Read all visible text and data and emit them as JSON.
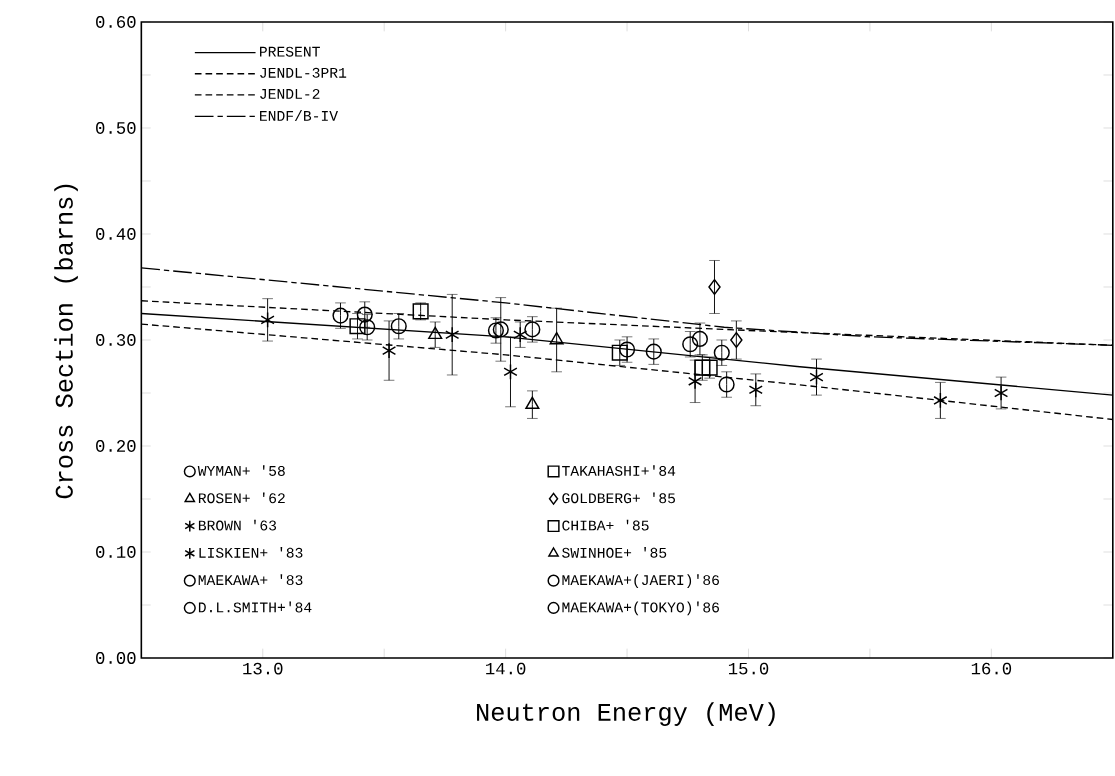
{
  "chart_data": {
    "type": "scatter",
    "xlabel": "Neutron Energy (MeV)",
    "ylabel": "Cross Section (barns)",
    "xlim": [
      12.5,
      16.5
    ],
    "ylim": [
      0,
      0.6
    ],
    "xticks": [
      {
        "value": 12.5,
        "label": null
      },
      {
        "value": 13,
        "label": "13.0"
      },
      {
        "value": 13.5,
        "label": null
      },
      {
        "value": 14,
        "label": "14.0"
      },
      {
        "value": 14.5,
        "label": null
      },
      {
        "value": 15,
        "label": "15.0"
      },
      {
        "value": 15.5,
        "label": null
      },
      {
        "value": 16,
        "label": "16.0"
      }
    ],
    "yticks": [
      {
        "value": 0,
        "label": "0.00"
      },
      {
        "value": 0.05,
        "label": null
      },
      {
        "value": 0.1,
        "label": "0.10"
      },
      {
        "value": 0.15,
        "label": null
      },
      {
        "value": 0.2,
        "label": "0.20"
      },
      {
        "value": 0.25,
        "label": null
      },
      {
        "value": 0.3,
        "label": "0.30"
      },
      {
        "value": 0.35,
        "label": null
      },
      {
        "value": 0.4,
        "label": "0.40"
      },
      {
        "value": 0.45,
        "label": null
      },
      {
        "value": 0.5,
        "label": "0.50"
      },
      {
        "value": 0.55,
        "label": null
      },
      {
        "value": 0.6,
        "label": "0.60"
      }
    ],
    "legend": "top left",
    "series": [
      {
        "name": "PRESENT",
        "type": "line",
        "line_style": "solid",
        "color": "#000000",
        "x": [
          12.5,
          14.0,
          15.2,
          16.5
        ],
        "values": [
          0.325,
          0.303,
          0.275,
          0.248
        ]
      },
      {
        "name": "JENDL-3PR1",
        "type": "line",
        "line_style": "dashed",
        "color": "#000000",
        "x": [
          12.5,
          14.0,
          15.0,
          16.5
        ],
        "values": [
          0.337,
          0.319,
          0.309,
          0.295
        ]
      },
      {
        "name": "JENDL-2",
        "type": "line",
        "line_style": "dashed",
        "color": "#000000",
        "x": [
          12.5,
          14.0,
          15.2,
          16.5
        ],
        "values": [
          0.315,
          0.286,
          0.258,
          0.225
        ]
      },
      {
        "name": "ENDF/B-IV",
        "type": "line",
        "line_style": "dashdot",
        "color": "#000000",
        "x": [
          12.5,
          14.0,
          14.9,
          15.5,
          16.5
        ],
        "values": [
          0.368,
          0.335,
          0.312,
          0.303,
          0.295
        ]
      },
      {
        "name": "WYMAN+ '58",
        "marker": "circle",
        "color": "#000000",
        "x": [
          13.42,
          13.98,
          14.8
        ],
        "values": [
          0.324,
          0.31,
          0.301
        ],
        "errors": [
          0.012,
          0.03,
          0.015
        ]
      },
      {
        "name": "ROSEN+ '62",
        "marker": "triangle",
        "color": "#000000",
        "x": [
          13.71,
          14.21
        ],
        "values": [
          0.305,
          0.3
        ],
        "errors": [
          0.012,
          0.03
        ]
      },
      {
        "name": "BROWN '63",
        "marker": "cross",
        "color": "#000000",
        "x": [
          14.06
        ],
        "values": [
          0.305
        ],
        "errors": [
          0.012
        ]
      },
      {
        "name": "LISKIEN+ '83",
        "marker": "cross",
        "color": "#000000",
        "x": [
          13.02,
          13.52,
          13.78,
          14.02,
          14.78,
          15.03,
          15.28,
          15.79,
          16.04
        ],
        "values": [
          0.319,
          0.29,
          0.305,
          0.27,
          0.261,
          0.253,
          0.265,
          0.243,
          0.25
        ],
        "errors": [
          0.02,
          0.028,
          0.038,
          0.033,
          0.02,
          0.015,
          0.017,
          0.017,
          0.015
        ]
      },
      {
        "name": "MAEKAWA+ '83",
        "marker": "circle",
        "color": "#000000",
        "x": [
          14.11,
          14.5
        ],
        "values": [
          0.31,
          0.291
        ],
        "errors": [
          0.012,
          0.012
        ]
      },
      {
        "name": "D.L.SMITH+'84",
        "marker": "circle",
        "color": "#000000",
        "x": [
          13.43,
          14.76
        ],
        "values": [
          0.312,
          0.296
        ],
        "errors": [
          0.012,
          0.012
        ]
      },
      {
        "name": "TAKAHASHI+'84",
        "marker": "square",
        "color": "#000000",
        "x": [
          13.65,
          14.84
        ],
        "values": [
          0.327,
          0.274
        ],
        "errors": [
          0.008,
          0.01
        ]
      },
      {
        "name": "GOLDBERG+ '85",
        "marker": "diamond",
        "color": "#000000",
        "x": [
          14.86,
          14.95
        ],
        "values": [
          0.35,
          0.3
        ],
        "errors": [
          0.025,
          0.018
        ]
      },
      {
        "name": "CHIBA+ '85",
        "marker": "square",
        "color": "#000000",
        "x": [
          13.39,
          14.47,
          14.81
        ],
        "values": [
          0.313,
          0.288,
          0.274
        ],
        "errors": [
          0.012,
          0.012,
          0.012
        ]
      },
      {
        "name": "SWINHOE+ '85",
        "marker": "triangle",
        "color": "#000000",
        "x": [
          14.11
        ],
        "values": [
          0.239
        ],
        "errors": [
          0.013
        ]
      },
      {
        "name": "MAEKAWA+(JAERI)'86",
        "marker": "circle",
        "color": "#000000",
        "x": [
          13.32,
          13.56,
          13.96,
          14.89,
          14.91
        ],
        "values": [
          0.323,
          0.313,
          0.309,
          0.288,
          0.258
        ],
        "errors": [
          0.012,
          0.012,
          0.012,
          0.012,
          0.012
        ]
      },
      {
        "name": "MAEKAWA+(TOKYO)'86",
        "marker": "circle",
        "color": "#000000",
        "x": [
          14.61
        ],
        "values": [
          0.289
        ],
        "errors": [
          0.012
        ]
      }
    ]
  }
}
